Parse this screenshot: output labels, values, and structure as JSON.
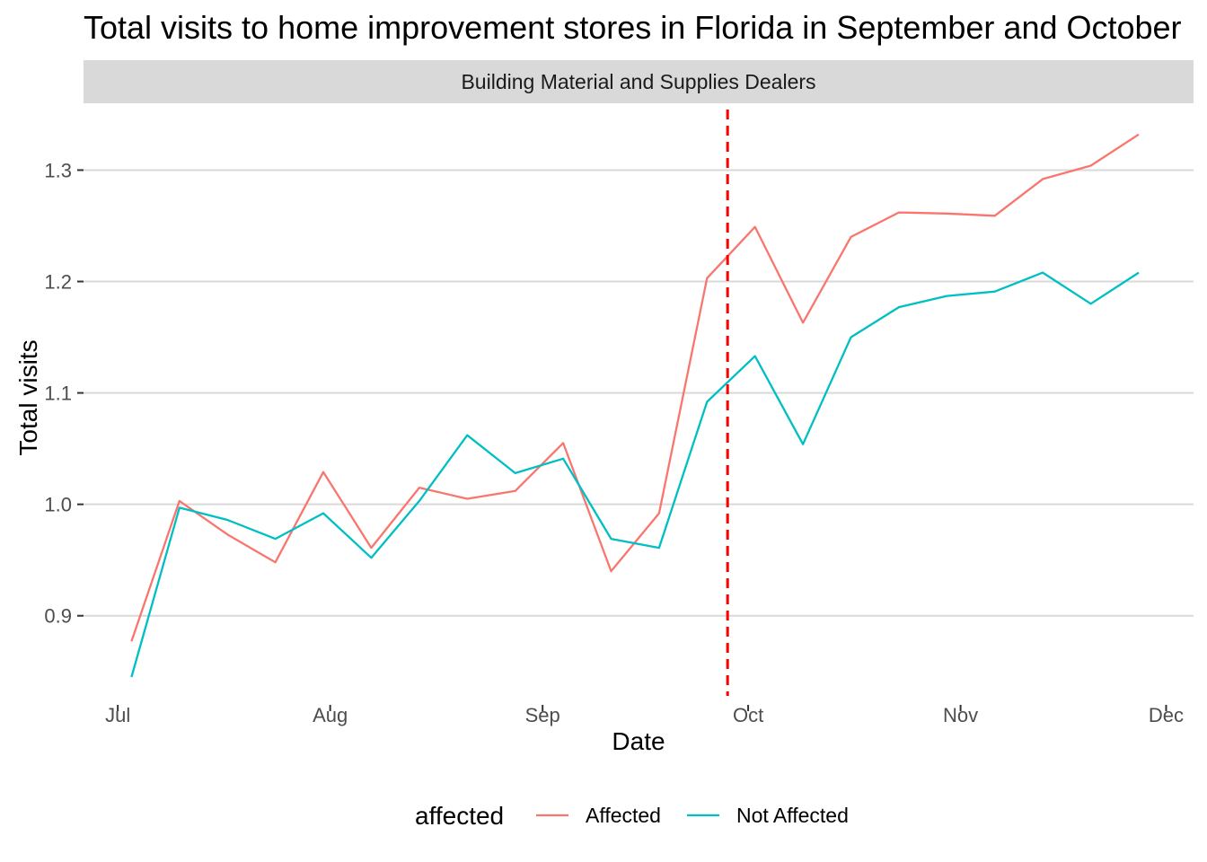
{
  "chart_data": {
    "type": "line",
    "title": "Total visits to home improvement stores in Florida in September and October",
    "facet": "Building Material and Supplies Dealers",
    "xlabel": "Date",
    "ylabel": "Total visits",
    "x_tick_labels": [
      "Jul",
      "Aug",
      "Sep",
      "Oct",
      "Nov",
      "Dec"
    ],
    "y_ticks": [
      0.9,
      1.0,
      1.1,
      1.2,
      1.3
    ],
    "y_tick_labels": [
      "0.9",
      "1.0",
      "1.1",
      "1.2",
      "1.3"
    ],
    "ylim": [
      0.82,
      1.36
    ],
    "xlim": [
      "2017-06-26",
      "2017-12-05"
    ],
    "grid": true,
    "legend_title": "affected",
    "legend_position": "bottom",
    "vline": {
      "date": "2017-09-28",
      "color": "#ff0000",
      "style": "dashed"
    },
    "series": [
      {
        "name": "Affected",
        "color": "#f8766d",
        "x": [
          "2017-07-03",
          "2017-07-10",
          "2017-07-17",
          "2017-07-24",
          "2017-07-31",
          "2017-08-07",
          "2017-08-14",
          "2017-08-21",
          "2017-08-28",
          "2017-09-04",
          "2017-09-11",
          "2017-09-18",
          "2017-09-25",
          "2017-10-02",
          "2017-10-09",
          "2017-10-16",
          "2017-10-23",
          "2017-10-30",
          "2017-11-06",
          "2017-11-13",
          "2017-11-20",
          "2017-11-27"
        ],
        "values": [
          0.877,
          1.003,
          0.973,
          0.948,
          1.029,
          0.961,
          1.015,
          1.005,
          1.012,
          1.055,
          0.94,
          0.992,
          1.203,
          1.249,
          1.163,
          1.24,
          1.262,
          1.261,
          1.259,
          1.292,
          1.304,
          1.332
        ]
      },
      {
        "name": "Not Affected",
        "color": "#00bfc4",
        "x": [
          "2017-07-03",
          "2017-07-10",
          "2017-07-17",
          "2017-07-24",
          "2017-07-31",
          "2017-08-07",
          "2017-08-14",
          "2017-08-21",
          "2017-08-28",
          "2017-09-04",
          "2017-09-11",
          "2017-09-18",
          "2017-09-25",
          "2017-10-02",
          "2017-10-09",
          "2017-10-16",
          "2017-10-23",
          "2017-10-30",
          "2017-11-06",
          "2017-11-13",
          "2017-11-20",
          "2017-11-27"
        ],
        "values": [
          0.845,
          0.997,
          0.986,
          0.969,
          0.992,
          0.952,
          1.003,
          1.062,
          1.028,
          1.041,
          0.969,
          0.961,
          1.092,
          1.133,
          1.054,
          1.15,
          1.177,
          1.187,
          1.191,
          1.208,
          1.18,
          1.208
        ]
      }
    ]
  }
}
